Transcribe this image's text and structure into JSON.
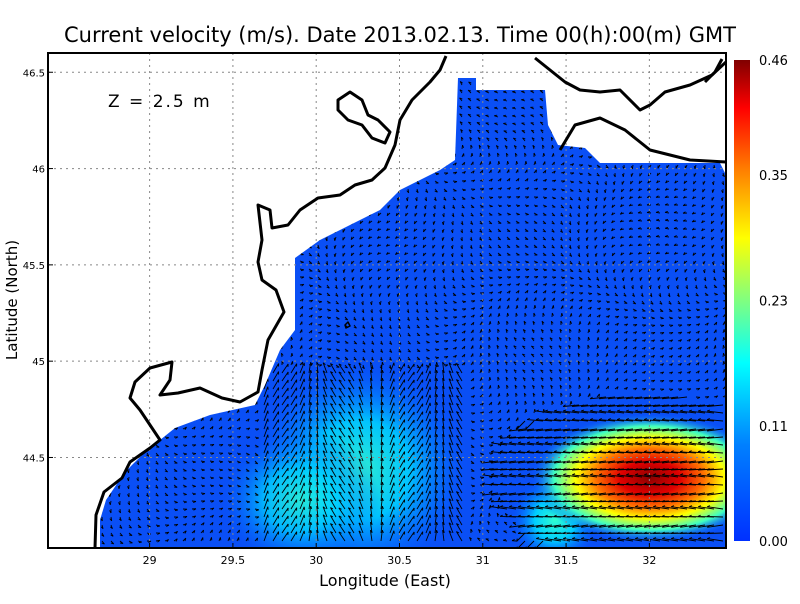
{
  "chart_data": {
    "type": "heatmap",
    "title": "Current velocity (m/s). Date 2013.02.13. Time 00(h):00(m) GMT",
    "annotation": "Z = 2.5 m",
    "xlabel": "Longitude (East)",
    "ylabel": "Latitude (North)",
    "xlim": [
      28.39,
      32.46
    ],
    "ylim": [
      44.03,
      46.6
    ],
    "xticks": [
      "29",
      "29.5",
      "30",
      "30.5",
      "31",
      "31.5",
      "32"
    ],
    "yticks": [
      "44.5",
      "45",
      "45.5",
      "46",
      "46.5"
    ],
    "grid": true,
    "overlay": "velocity vectors (arrows)",
    "colorbar": {
      "range": [
        0.0,
        0.46
      ],
      "ticks": [
        "0.00",
        "0.11",
        "0.23",
        "0.35",
        "0.46"
      ],
      "colormap": "jet",
      "placement": "right"
    },
    "hotspots": [
      {
        "lon": 32.0,
        "lat": 44.35,
        "value": 0.44
      },
      {
        "lon": 30.3,
        "lat": 44.6,
        "value": 0.17
      },
      {
        "lon": 31.4,
        "lat": 44.2,
        "value": 0.18
      }
    ]
  }
}
